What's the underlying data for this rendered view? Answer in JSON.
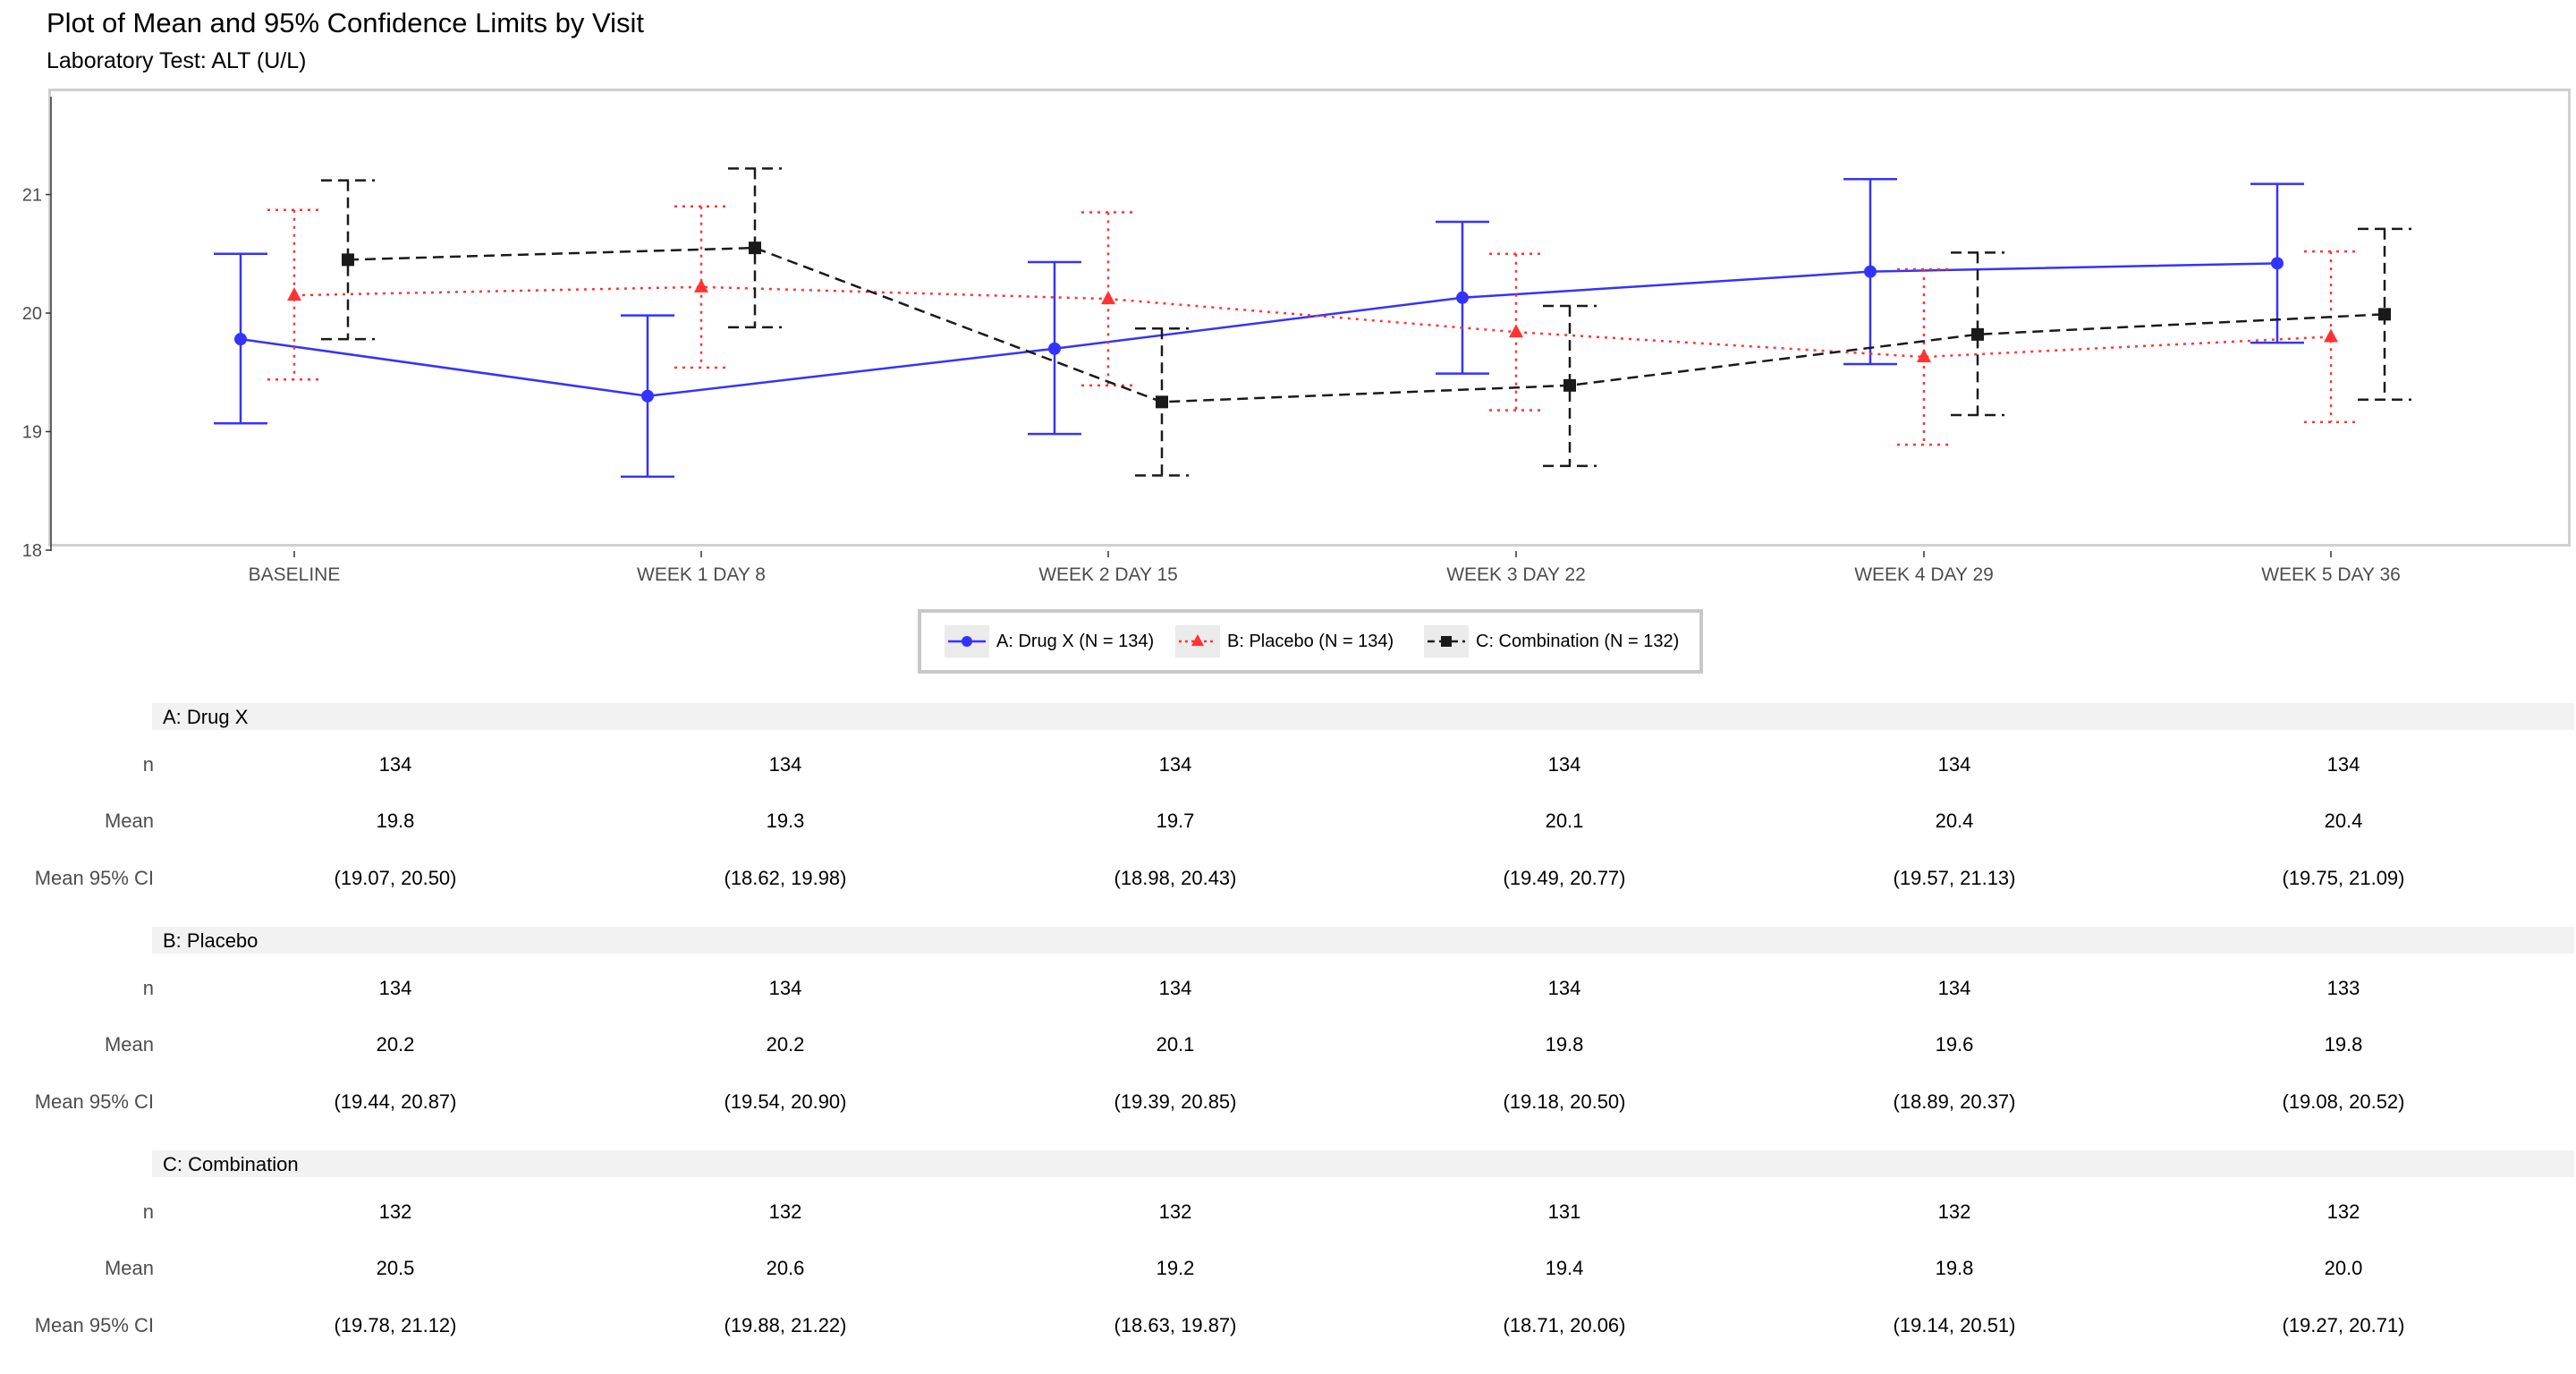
{
  "title": "Plot of Mean and 95% Confidence Limits by Visit",
  "subtitle": "Laboratory Test: ALT (U/L)",
  "chart_data": {
    "type": "line",
    "categories": [
      "BASELINE",
      "WEEK 1 DAY 8",
      "WEEK 2 DAY 15",
      "WEEK 3 DAY 22",
      "WEEK 4 DAY 29",
      "WEEK 5 DAY 36"
    ],
    "yticks": [
      18,
      19,
      20,
      21
    ],
    "ylim": [
      18,
      21.8
    ],
    "grid": false,
    "legend_position": "bottom",
    "series": [
      {
        "name": "A: Drug X (N = 134)",
        "color": "#3333ff",
        "marker": "circle",
        "line_style": "solid",
        "values": [
          19.78,
          19.3,
          19.7,
          20.13,
          20.35,
          20.42
        ],
        "lower": [
          19.07,
          18.62,
          18.98,
          19.49,
          19.57,
          19.75
        ],
        "upper": [
          20.5,
          19.98,
          20.43,
          20.77,
          21.13,
          21.09
        ]
      },
      {
        "name": "B: Placebo (N = 134)",
        "color": "#ff3333",
        "marker": "triangle",
        "line_style": "dotted",
        "values": [
          20.15,
          20.22,
          20.12,
          19.84,
          19.63,
          19.8
        ],
        "lower": [
          19.44,
          19.54,
          19.39,
          19.18,
          18.89,
          19.08
        ],
        "upper": [
          20.87,
          20.9,
          20.85,
          20.5,
          20.37,
          20.52
        ]
      },
      {
        "name": "C: Combination (N = 132)",
        "color": "#1a1a1a",
        "marker": "square",
        "line_style": "dashed",
        "values": [
          20.45,
          20.55,
          19.25,
          19.39,
          19.82,
          19.99
        ],
        "lower": [
          19.78,
          19.88,
          18.63,
          18.71,
          19.14,
          19.27
        ],
        "upper": [
          21.12,
          21.22,
          19.87,
          20.06,
          20.51,
          20.71
        ]
      }
    ]
  },
  "table": {
    "row_labels": [
      "n",
      "Mean",
      "Mean 95% CI"
    ],
    "groups": [
      {
        "name": "A: Drug X",
        "n": [
          "134",
          "134",
          "134",
          "134",
          "134",
          "134"
        ],
        "mean": [
          "19.8",
          "19.3",
          "19.7",
          "20.1",
          "20.4",
          "20.4"
        ],
        "ci": [
          "(19.07, 20.50)",
          "(18.62, 19.98)",
          "(18.98, 20.43)",
          "(19.49, 20.77)",
          "(19.57, 21.13)",
          "(19.75, 21.09)"
        ]
      },
      {
        "name": "B: Placebo",
        "n": [
          "134",
          "134",
          "134",
          "134",
          "134",
          "133"
        ],
        "mean": [
          "20.2",
          "20.2",
          "20.1",
          "19.8",
          "19.6",
          "19.8"
        ],
        "ci": [
          "(19.44, 20.87)",
          "(19.54, 20.90)",
          "(19.39, 20.85)",
          "(19.18, 20.50)",
          "(18.89, 20.37)",
          "(19.08, 20.52)"
        ]
      },
      {
        "name": "C: Combination",
        "n": [
          "132",
          "132",
          "132",
          "131",
          "132",
          "132"
        ],
        "mean": [
          "20.5",
          "20.6",
          "19.2",
          "19.4",
          "19.8",
          "20.0"
        ],
        "ci": [
          "(19.78, 21.12)",
          "(19.88, 21.22)",
          "(18.63, 19.87)",
          "(18.71, 20.06)",
          "(19.14, 20.51)",
          "(19.27, 20.71)"
        ]
      }
    ]
  }
}
